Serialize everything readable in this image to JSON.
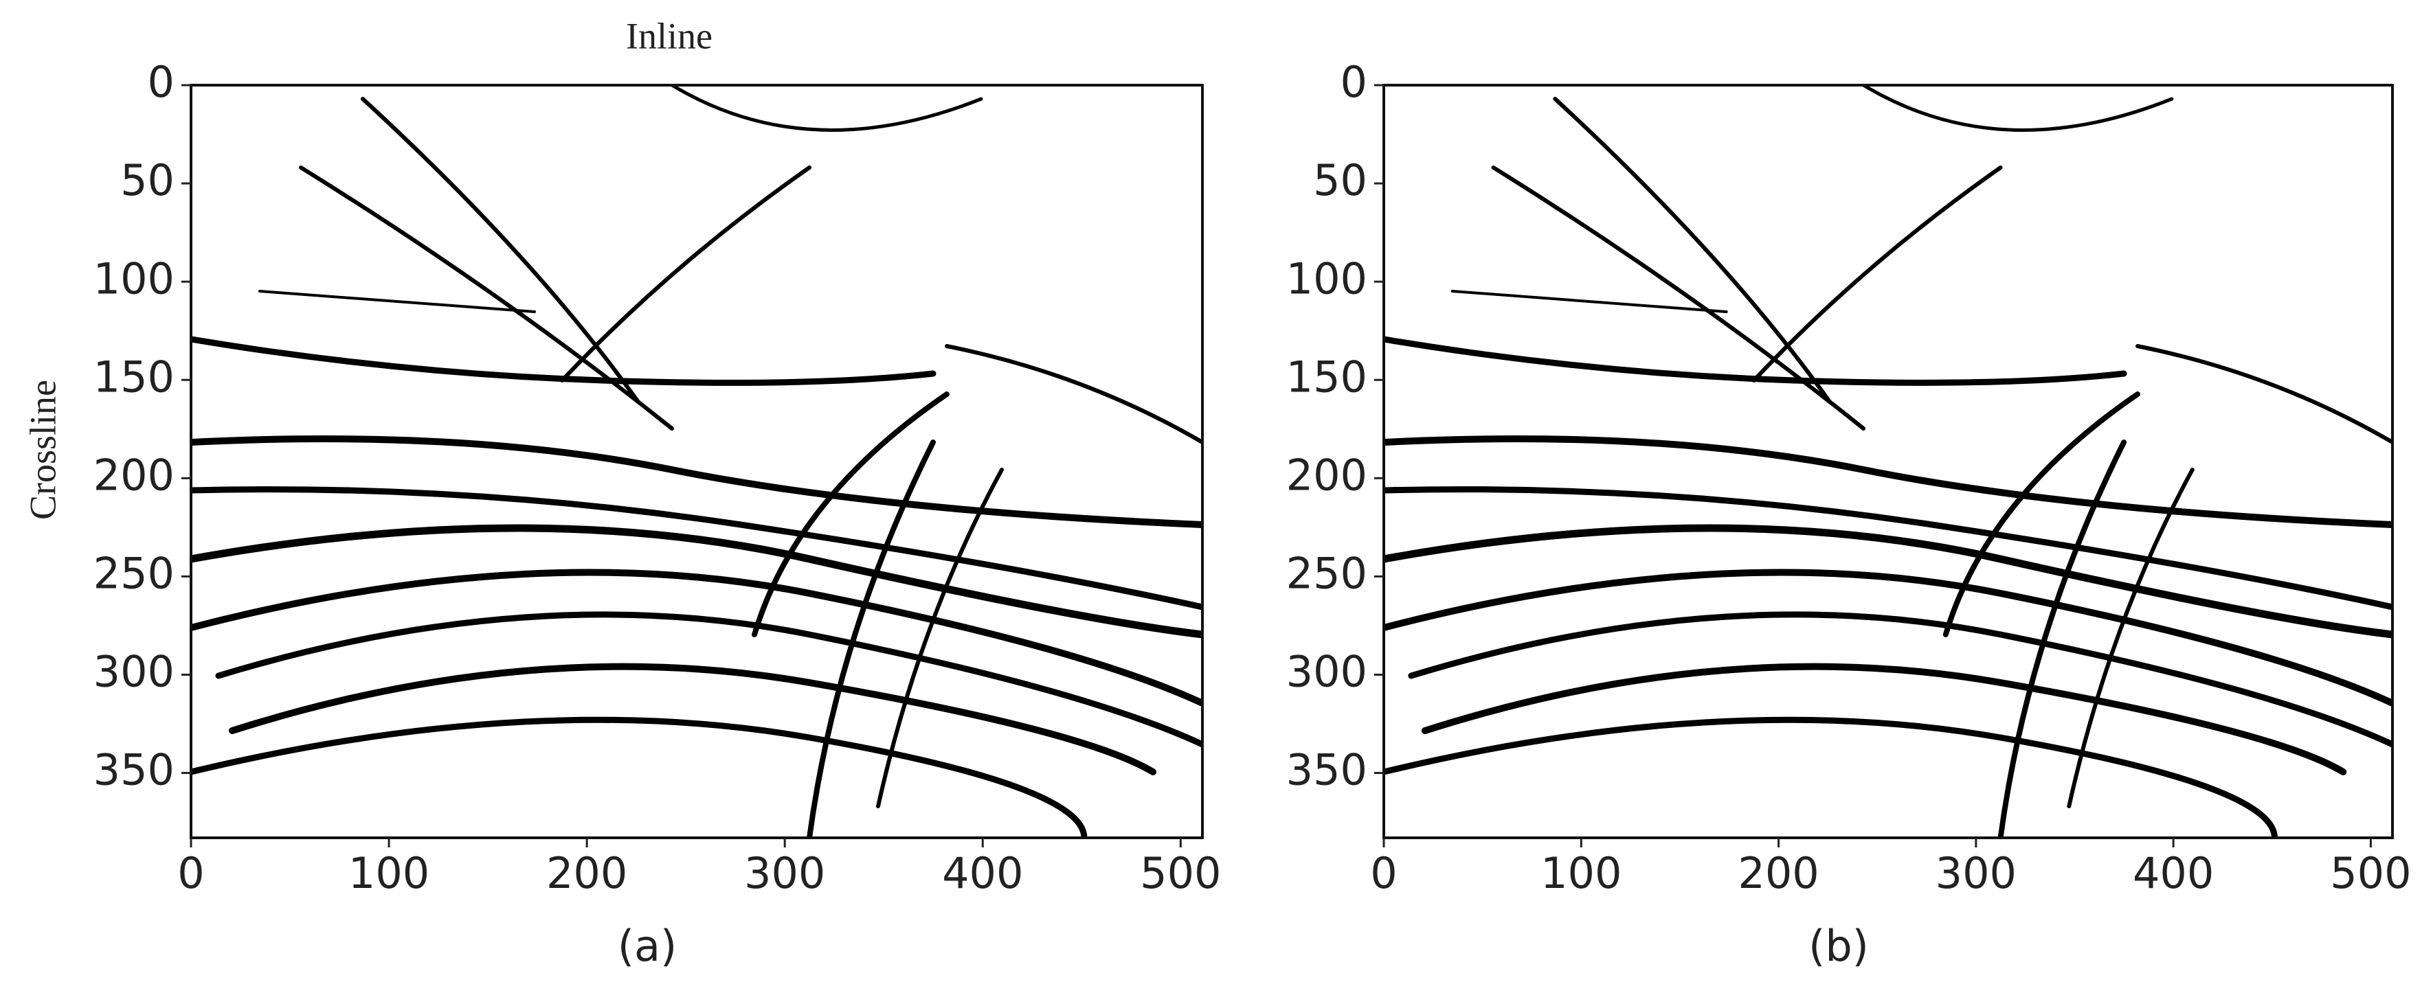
{
  "chart_data": [
    {
      "type": "image",
      "title": "Inline",
      "ylabel": "Crossline",
      "xlabel": "(a)",
      "xlim": [
        0,
        511
      ],
      "ylim": [
        0,
        383
      ],
      "y_inverted": true,
      "xticks": [
        0,
        100,
        200,
        300,
        400,
        500
      ],
      "yticks": [
        0,
        50,
        100,
        150,
        200,
        250,
        300,
        350
      ]
    },
    {
      "type": "image",
      "xlabel": "(b)",
      "xlim": [
        0,
        511
      ],
      "ylim": [
        0,
        383
      ],
      "y_inverted": true,
      "xticks": [
        0,
        100,
        200,
        300,
        400,
        500
      ],
      "yticks": [
        0,
        50,
        100,
        150,
        200,
        250,
        300,
        350
      ]
    }
  ]
}
